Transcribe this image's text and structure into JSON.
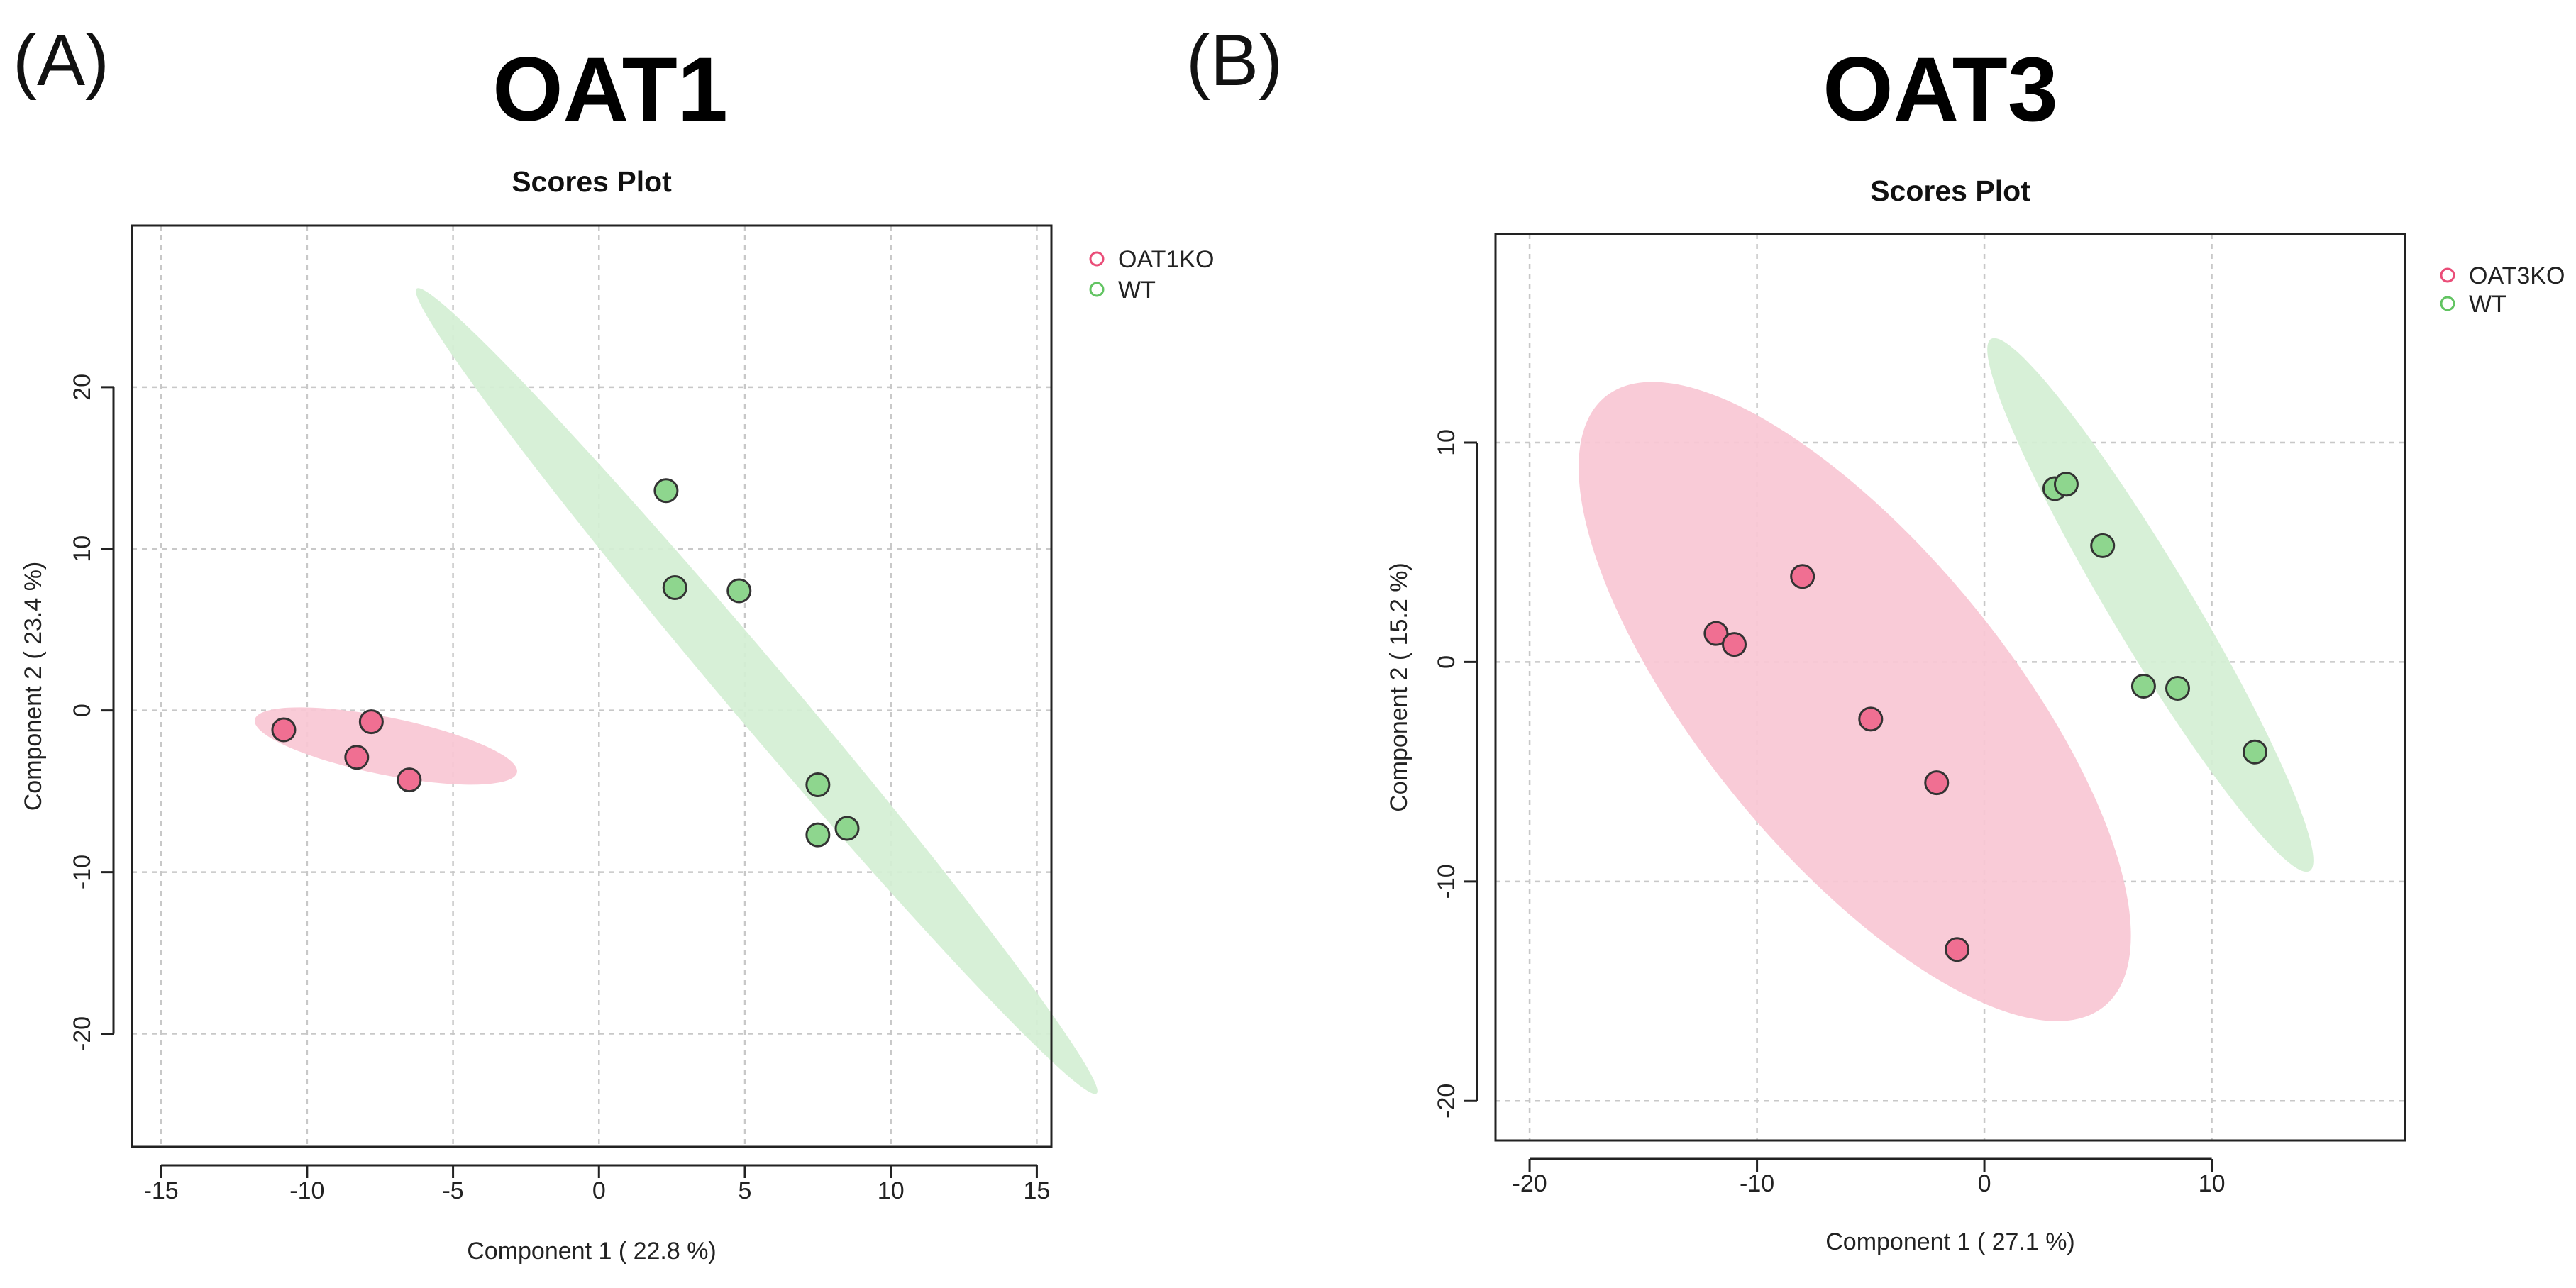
{
  "figure": {
    "panels": [
      {
        "letter": "(A)",
        "heading": "OAT1"
      },
      {
        "letter": "(B)",
        "heading": "OAT3"
      }
    ]
  },
  "chart_data": [
    {
      "type": "scatter",
      "title": "Scores Plot",
      "xlabel": "Component 1 ( 22.8 %)",
      "ylabel": "Component 2 ( 23.4 %)",
      "xlim": [
        -16,
        15.5
      ],
      "ylim": [
        -27,
        30
      ],
      "xticks": [
        -15,
        -10,
        -5,
        0,
        5,
        10,
        15
      ],
      "yticks": [
        -20,
        -10,
        0,
        10,
        20
      ],
      "grid": true,
      "legend_position": "top-right",
      "series": [
        {
          "name": "OAT1KO",
          "fill": "#f06f92",
          "ring": "#ea4d78",
          "ellipse_fill": "#f8c7d4",
          "points": [
            {
              "x": -10.8,
              "y": -1.2
            },
            {
              "x": -7.8,
              "y": -0.7
            },
            {
              "x": -8.3,
              "y": -2.9
            },
            {
              "x": -6.5,
              "y": -4.3
            }
          ],
          "ellipse": {
            "cx": -7.3,
            "cy": -2.2,
            "rx": 4.8,
            "ry": 1.7,
            "angle": -22
          }
        },
        {
          "name": "WT",
          "fill": "#8ed68e",
          "ring": "#62c462",
          "ellipse_fill": "#d4efd4",
          "points": [
            {
              "x": 2.3,
              "y": 13.6
            },
            {
              "x": 2.6,
              "y": 7.6
            },
            {
              "x": 4.8,
              "y": 7.4
            },
            {
              "x": 7.5,
              "y": -4.6
            },
            {
              "x": 7.5,
              "y": -7.7
            },
            {
              "x": 8.5,
              "y": -7.3
            }
          ],
          "ellipse": {
            "cx": 5.4,
            "cy": 1.2,
            "rx": 27.5,
            "ry": 1.25,
            "angle": -65
          }
        }
      ]
    },
    {
      "type": "scatter",
      "title": "Scores Plot",
      "xlabel": "Component 1 ( 27.1 %)",
      "ylabel": "Component 2 ( 15.2 %)",
      "xlim": [
        -21.5,
        18.5
      ],
      "ylim": [
        -21.8,
        19.5
      ],
      "xticks": [
        -20,
        -10,
        0,
        10
      ],
      "yticks": [
        -20,
        -10,
        0,
        10
      ],
      "grid": true,
      "legend_position": "top-right",
      "series": [
        {
          "name": "OAT3KO",
          "fill": "#f06f92",
          "ring": "#ea4d78",
          "ellipse_fill": "#f8c7d4",
          "points": [
            {
              "x": -11.8,
              "y": 1.3
            },
            {
              "x": -11.0,
              "y": 0.8
            },
            {
              "x": -8.0,
              "y": 3.9
            },
            {
              "x": -5.0,
              "y": -2.6
            },
            {
              "x": -2.1,
              "y": -5.5
            },
            {
              "x": -1.2,
              "y": -13.1
            }
          ],
          "ellipse": {
            "cx": -5.7,
            "cy": -1.8,
            "rx": 17.7,
            "ry": 6.8,
            "angle": -52
          }
        },
        {
          "name": "WT",
          "fill": "#8ed68e",
          "ring": "#62c462",
          "ellipse_fill": "#d4efd4",
          "points": [
            {
              "x": 3.1,
              "y": 7.9
            },
            {
              "x": 3.6,
              "y": 8.1
            },
            {
              "x": 5.2,
              "y": 5.3
            },
            {
              "x": 7.0,
              "y": -1.1
            },
            {
              "x": 8.5,
              "y": -1.2
            },
            {
              "x": 11.9,
              "y": -4.1
            }
          ],
          "ellipse": {
            "cx": 7.3,
            "cy": 2.6,
            "rx": 14.0,
            "ry": 1.8,
            "angle": -60
          }
        }
      ]
    }
  ]
}
